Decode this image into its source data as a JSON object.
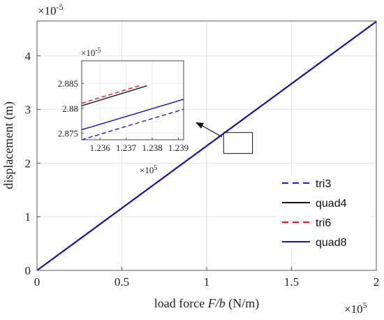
{
  "chart_data": {
    "type": "line",
    "xlabel_prefix": "load force ",
    "xlabel_var": "F/b",
    "xlabel_unit": " (N/m)",
    "ylabel": "displacement (m)",
    "x_multiplier": "×10",
    "x_multiplier_exp": "5",
    "y_multiplier": "×10",
    "y_multiplier_exp": "-5",
    "xlim": [
      0,
      2
    ],
    "ylim": [
      0,
      4.65
    ],
    "xticks": [
      "0",
      "0.5",
      "1",
      "1.5",
      "2"
    ],
    "yticks": [
      "0",
      "1",
      "2",
      "3",
      "4"
    ],
    "grid": true,
    "legend_position": "right",
    "series": [
      {
        "name": "tri3",
        "color": "#1f1fb0",
        "dash": "dashed",
        "x": [
          0,
          2
        ],
        "y": [
          0,
          4.64
        ]
      },
      {
        "name": "quad4",
        "color": "#111111",
        "dash": "solid",
        "x": [
          0,
          2
        ],
        "y": [
          0,
          4.64
        ]
      },
      {
        "name": "tri6",
        "color": "#e01818",
        "dash": "dashed",
        "x": [
          0,
          2
        ],
        "y": [
          0,
          4.64
        ]
      },
      {
        "name": "quad8",
        "color": "#1515a8",
        "dash": "solid",
        "x": [
          0,
          2
        ],
        "y": [
          0,
          4.64
        ]
      }
    ],
    "zoom_box": {
      "x": [
        1.1,
        1.27
      ],
      "y": [
        2.18,
        2.57
      ]
    },
    "inset": {
      "xlim": [
        1.2353,
        1.2392
      ],
      "ylim": [
        2.8737,
        2.8895
      ],
      "xticks": [
        "1.236",
        "1.237",
        "1.238",
        "1.239"
      ],
      "yticks": [
        "2.875",
        "2.88",
        "2.885"
      ],
      "x_multiplier": "×10",
      "x_multiplier_exp": "5",
      "y_multiplier": "×10",
      "y_multiplier_exp": "-5",
      "series": [
        {
          "name": "tri3",
          "x": [
            1.2353,
            1.2392
          ],
          "y": [
            2.8737,
            2.8798
          ]
        },
        {
          "name": "quad4",
          "x": [
            1.2353,
            1.2378
          ],
          "y": [
            2.8805,
            2.8845
          ]
        },
        {
          "name": "tri6",
          "x": [
            1.2353,
            1.2375
          ],
          "y": [
            2.881,
            2.8845
          ]
        },
        {
          "name": "quad8",
          "x": [
            1.2353,
            1.2392
          ],
          "y": [
            2.8757,
            2.8818
          ]
        }
      ]
    }
  }
}
